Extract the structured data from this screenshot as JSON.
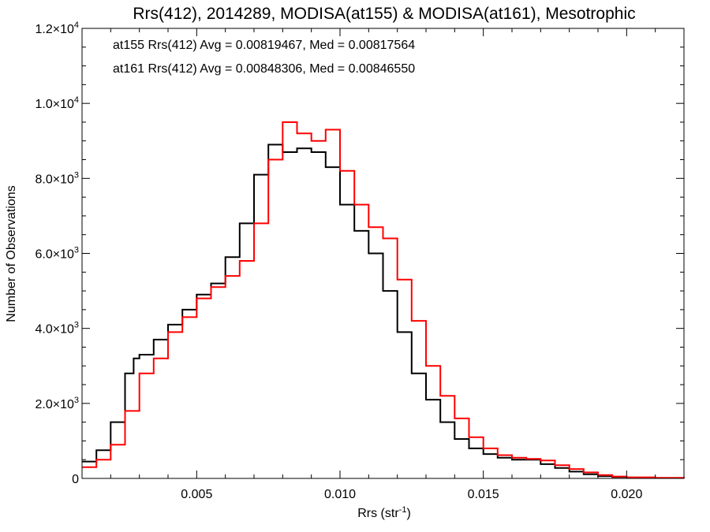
{
  "chart_data": {
    "type": "line",
    "title": "Rrs(412), 2014289, MODISA(at155) & MODISA(at161), Mesotrophic",
    "xlabel": "Rrs (str",
    "xlabel_sup": "-1",
    "xlabel_close": ")",
    "ylabel": "Number of Observations",
    "xlim": [
      0.001,
      0.022
    ],
    "ylim": [
      0,
      12000
    ],
    "x_ticks": [
      {
        "value": 0.005,
        "label": "0.005"
      },
      {
        "value": 0.01,
        "label": "0.010"
      },
      {
        "value": 0.015,
        "label": "0.015"
      },
      {
        "value": 0.02,
        "label": "0.020"
      }
    ],
    "y_ticks": [
      {
        "value": 0,
        "mant": "0",
        "exp": ""
      },
      {
        "value": 2000,
        "mant": "2.0×10",
        "exp": "3"
      },
      {
        "value": 4000,
        "mant": "4.0×10",
        "exp": "3"
      },
      {
        "value": 6000,
        "mant": "6.0×10",
        "exp": "3"
      },
      {
        "value": 8000,
        "mant": "8.0×10",
        "exp": "3"
      },
      {
        "value": 10000,
        "mant": "1.0×10",
        "exp": "4"
      },
      {
        "value": 12000,
        "mant": "1.2×10",
        "exp": "4"
      }
    ],
    "annotations": [
      {
        "text": "at155 Rrs(412) Avg = 0.00819467, Med = 0.00817564",
        "color": "#000000"
      },
      {
        "text": "at161 Rrs(412) Avg = 0.00848306, Med = 0.00846550",
        "color": "#ff0000"
      }
    ],
    "series": [
      {
        "color": "#000000",
        "x": [
          0.001,
          0.0015,
          0.002,
          0.0025,
          0.0028,
          0.003,
          0.0035,
          0.004,
          0.0045,
          0.005,
          0.0055,
          0.006,
          0.0065,
          0.007,
          0.0075,
          0.008,
          0.0085,
          0.009,
          0.0095,
          0.01,
          0.0105,
          0.011,
          0.0115,
          0.012,
          0.0125,
          0.013,
          0.0135,
          0.014,
          0.0145,
          0.015,
          0.0155,
          0.016,
          0.0165,
          0.017,
          0.0175,
          0.018,
          0.0185,
          0.019,
          0.0195,
          0.02,
          0.021,
          0.022
        ],
        "y": [
          450,
          750,
          1500,
          2800,
          3200,
          3300,
          3700,
          4100,
          4500,
          4900,
          5200,
          5900,
          6800,
          8100,
          8900,
          8700,
          8800,
          8700,
          8300,
          7300,
          6600,
          6000,
          5000,
          3900,
          2800,
          2100,
          1500,
          1050,
          800,
          650,
          550,
          500,
          500,
          380,
          280,
          180,
          110,
          60,
          35,
          20,
          10,
          5
        ]
      },
      {
        "color": "#ff0000",
        "x": [
          0.001,
          0.0015,
          0.002,
          0.0025,
          0.003,
          0.0035,
          0.004,
          0.0045,
          0.005,
          0.0055,
          0.006,
          0.0065,
          0.007,
          0.0075,
          0.008,
          0.0085,
          0.009,
          0.0095,
          0.01,
          0.0105,
          0.011,
          0.0115,
          0.012,
          0.0125,
          0.013,
          0.0135,
          0.014,
          0.0145,
          0.015,
          0.0155,
          0.016,
          0.0165,
          0.017,
          0.0175,
          0.018,
          0.0185,
          0.019,
          0.0195,
          0.02,
          0.021,
          0.022
        ],
        "y": [
          300,
          500,
          900,
          1800,
          2800,
          3200,
          3900,
          4300,
          4800,
          5100,
          5400,
          5800,
          6800,
          8500,
          9500,
          9200,
          9000,
          9300,
          8200,
          7300,
          6700,
          6400,
          5300,
          4200,
          3000,
          2200,
          1600,
          1100,
          800,
          620,
          550,
          520,
          480,
          350,
          250,
          160,
          90,
          50,
          30,
          15,
          5
        ]
      }
    ]
  }
}
